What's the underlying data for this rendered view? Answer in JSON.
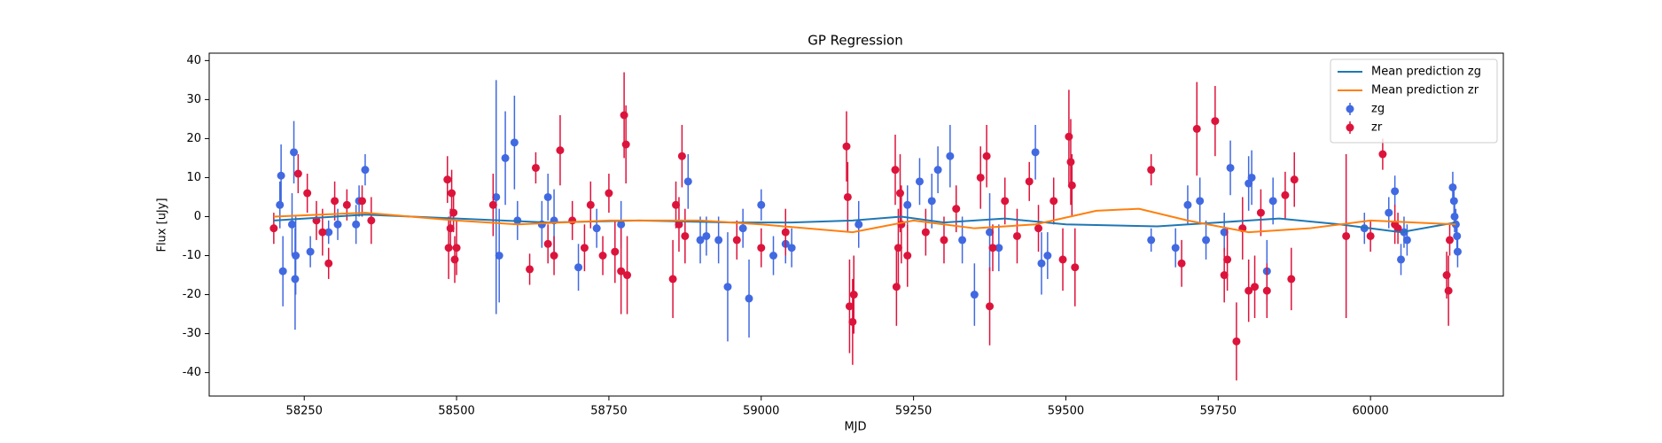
{
  "chart_data": {
    "type": "errorbar",
    "title": "GP Regression",
    "x_label": "MJD",
    "y_label": "Flux [uJy]",
    "xlim": [
      58094,
      60218
    ],
    "ylim": [
      -46,
      41.9
    ],
    "xticks": [
      58250,
      58500,
      58750,
      59000,
      59250,
      59500,
      59750,
      60000
    ],
    "yticks": [
      -40,
      -30,
      -20,
      -10,
      0,
      10,
      20,
      30,
      40
    ],
    "legend": "upper right",
    "series": [
      {
        "name": "Mean prediction zg",
        "kind": "line",
        "color": "#1f77b4",
        "x": [
          58200,
          58350,
          58500,
          58650,
          58800,
          58950,
          59050,
          59150,
          59230,
          59300,
          59400,
          59500,
          59650,
          59750,
          59850,
          59950,
          60050,
          60140
        ],
        "values": [
          -1,
          0.5,
          -0.5,
          -1.5,
          -1,
          -1.5,
          -1.5,
          -1,
          0,
          -1.5,
          -0.5,
          -2,
          -2.5,
          -1.5,
          -0.5,
          -2,
          -4,
          -1.5
        ]
      },
      {
        "name": "Mean prediction zr",
        "kind": "line",
        "color": "#ff7f0e",
        "x": [
          58200,
          58350,
          58500,
          58600,
          58750,
          58900,
          59000,
          59150,
          59250,
          59350,
          59450,
          59550,
          59620,
          59700,
          59800,
          59900,
          60000,
          60140
        ],
        "values": [
          0,
          1,
          -1,
          -2,
          -1,
          -1,
          -2,
          -4,
          -1,
          -3,
          -2,
          1.5,
          2,
          -1,
          -4,
          -3,
          -1,
          -2
        ]
      },
      {
        "name": "zg",
        "kind": "errorbar",
        "color": "#4169e1",
        "x": [
          58210,
          58212,
          58215,
          58230,
          58233,
          58236,
          58235,
          58260,
          58290,
          58305,
          58335,
          58340,
          58350,
          58565,
          58570,
          58580,
          58595,
          58600,
          58640,
          58650,
          58660,
          58700,
          58730,
          58770,
          58880,
          58900,
          58910,
          58930,
          58945,
          58970,
          58980,
          59000,
          59020,
          59040,
          59050,
          59160,
          59240,
          59260,
          59280,
          59290,
          59310,
          59330,
          59350,
          59375,
          59390,
          59450,
          59460,
          59470,
          59640,
          59680,
          59700,
          59720,
          59730,
          59760,
          59770,
          59800,
          59805,
          59830,
          59840,
          59990,
          60030,
          60040,
          60050,
          60055,
          60060,
          60135,
          60137,
          60138,
          60140,
          60142,
          60143
        ],
        "values": [
          3,
          10.5,
          -14,
          -2,
          16.5,
          -10,
          -16,
          -9,
          -4,
          -2,
          -2,
          4,
          12,
          5,
          -10,
          15,
          19,
          -1,
          -2,
          5,
          -1,
          -13,
          -3,
          -2,
          9,
          -6,
          -5,
          -6,
          -18,
          -3,
          -21,
          3,
          -10,
          -7,
          -8,
          -2,
          3,
          9,
          4,
          12,
          15.5,
          -6,
          -20,
          -4,
          -8,
          16.5,
          -12,
          -10,
          -6,
          -8,
          3,
          4,
          -6,
          -4,
          12.5,
          8.5,
          10,
          -14,
          4,
          -3,
          1,
          6.5,
          -11,
          -4,
          -6,
          7.5,
          4,
          0,
          -2,
          -5,
          -9
        ],
        "errors": [
          6,
          8,
          9,
          8,
          8,
          10,
          13,
          4,
          3,
          4,
          5,
          4,
          4,
          30,
          12,
          12,
          12,
          5,
          6,
          6,
          8,
          6,
          5,
          6,
          7,
          6,
          5,
          6,
          14,
          5,
          10,
          4,
          5,
          5,
          5,
          6,
          5,
          6,
          7,
          6,
          8,
          6,
          8,
          10,
          6,
          7,
          8,
          6,
          3,
          5,
          5,
          6,
          5,
          5,
          7,
          7,
          7,
          8,
          6,
          4,
          4,
          4,
          4,
          4,
          4,
          4,
          4,
          4,
          4,
          4,
          4
        ]
      },
      {
        "name": "zr",
        "kind": "errorbar",
        "color": "#dc143c",
        "x": [
          58200,
          58240,
          58255,
          58270,
          58280,
          58290,
          58300,
          58320,
          58345,
          58360,
          58485,
          58487,
          58490,
          58492,
          58495,
          58497,
          58500,
          58560,
          58620,
          58630,
          58650,
          58660,
          58670,
          58690,
          58710,
          58720,
          58740,
          58750,
          58760,
          58770,
          58775,
          58778,
          58780,
          58855,
          58860,
          58865,
          58870,
          58875,
          58960,
          59000,
          59040,
          59140,
          59142,
          59145,
          59150,
          59152,
          59220,
          59222,
          59225,
          59228,
          59230,
          59240,
          59270,
          59300,
          59320,
          59360,
          59370,
          59375,
          59380,
          59400,
          59420,
          59440,
          59455,
          59480,
          59495,
          59505,
          59508,
          59510,
          59515,
          59640,
          59690,
          59715,
          59745,
          59760,
          59765,
          59780,
          59790,
          59800,
          59810,
          59820,
          59830,
          59860,
          59870,
          59875,
          59960,
          60000,
          60020,
          60040,
          60045,
          60125,
          60128,
          60130
        ],
        "values": [
          -3,
          11,
          6,
          -1,
          -4,
          -12,
          4,
          3,
          4,
          -1,
          9.5,
          -8,
          -3,
          6,
          1,
          -11,
          -8,
          3,
          -13.5,
          12.5,
          -7,
          -10,
          17,
          -1,
          -8,
          3,
          -10,
          6,
          -9,
          -14,
          26,
          18.5,
          -15,
          -16,
          3,
          -2,
          15.5,
          -5,
          -6,
          -8,
          -4,
          18,
          5,
          -23,
          -27,
          -20,
          12,
          -18,
          -8,
          6,
          -2,
          -10,
          -4,
          -6,
          2,
          10,
          15.5,
          -23,
          -8,
          4,
          -5,
          9,
          -3,
          4,
          -11,
          20.5,
          14,
          8,
          -13,
          12,
          -12,
          22.5,
          24.5,
          -15,
          -11,
          -32,
          -3,
          -19,
          -18,
          1,
          -19,
          5.5,
          -16,
          9.5,
          -5,
          -5,
          16,
          -2,
          -3,
          -15,
          -19,
          -6
        ],
        "errors": [
          4,
          5,
          5,
          5,
          6,
          4,
          5,
          4,
          4,
          6,
          6,
          8,
          5,
          6,
          5,
          6,
          7,
          8,
          4,
          4,
          5,
          5,
          9,
          5,
          6,
          6,
          5,
          5,
          8,
          11,
          11,
          10,
          10,
          10,
          6,
          7,
          8,
          7,
          5,
          5,
          6,
          9,
          9,
          12,
          11,
          10,
          9,
          10,
          10,
          10,
          10,
          8,
          6,
          6,
          6,
          8,
          8,
          10,
          6,
          6,
          7,
          5,
          6,
          6,
          8,
          12,
          11,
          8,
          10,
          4,
          6,
          12,
          9,
          7,
          8,
          10,
          8,
          8,
          8,
          6,
          7,
          6,
          8,
          7,
          21,
          4,
          4,
          5,
          4,
          6,
          9,
          4
        ]
      }
    ]
  }
}
